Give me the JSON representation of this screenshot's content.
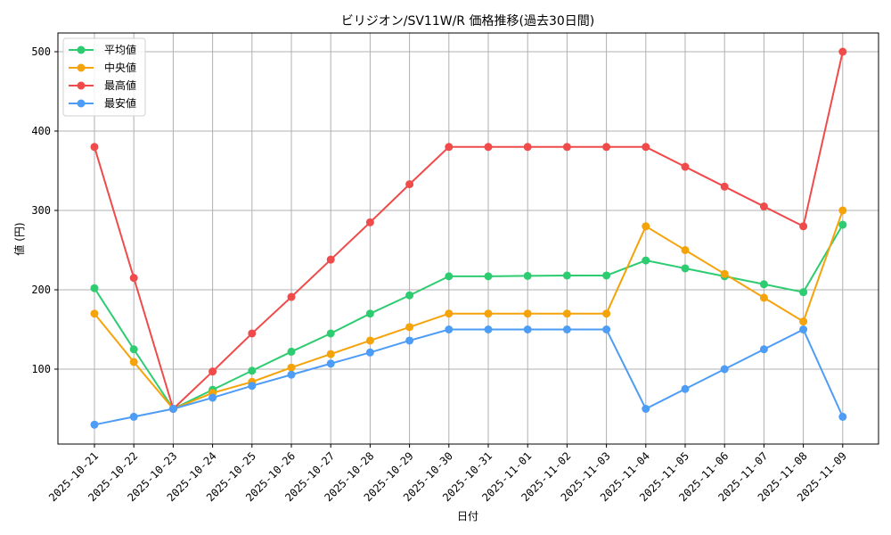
{
  "chart_data": {
    "type": "line",
    "title": "ビリジオン/SV11W/R 価格推移(過去30日間)",
    "xlabel": "日付",
    "ylabel": "値 (円)",
    "ylim": [
      17,
      523
    ],
    "yticks": [
      100,
      200,
      300,
      400,
      500
    ],
    "grid": true,
    "legend_position": "upper left",
    "categories": [
      "2025-10-21",
      "2025-10-22",
      "2025-10-23",
      "2025-10-24",
      "2025-10-25",
      "2025-10-26",
      "2025-10-27",
      "2025-10-28",
      "2025-10-29",
      "2025-10-30",
      "2025-10-31",
      "2025-11-01",
      "2025-11-02",
      "2025-11-03",
      "2025-11-04",
      "2025-11-05",
      "2025-11-06",
      "2025-11-07",
      "2025-11-08",
      "2025-11-09"
    ],
    "series": [
      {
        "name": "平均値",
        "color": "#2ecc71",
        "values": [
          202,
          125,
          50,
          74,
          98,
          122,
          145,
          170,
          193,
          217,
          217,
          217.5,
          218,
          218,
          237,
          227,
          217,
          207,
          197,
          282
        ]
      },
      {
        "name": "中央値",
        "color": "#f5a30a",
        "values": [
          170,
          109,
          50,
          70,
          84,
          102,
          119,
          136,
          153,
          170,
          170,
          170,
          170,
          170,
          280,
          250,
          220,
          190,
          160,
          300
        ]
      },
      {
        "name": "最高値",
        "color": "#f04b4b",
        "values": [
          380,
          215,
          50,
          97,
          145,
          191,
          238,
          285,
          333,
          380,
          380,
          380,
          380,
          380,
          380,
          355,
          330,
          305,
          280,
          500
        ]
      },
      {
        "name": "最安値",
        "color": "#4d9cf5",
        "values": [
          30,
          40,
          50,
          64,
          79,
          93,
          107,
          121,
          136,
          150,
          150,
          150,
          150,
          150,
          50,
          75,
          100,
          125,
          150,
          40
        ]
      }
    ]
  }
}
